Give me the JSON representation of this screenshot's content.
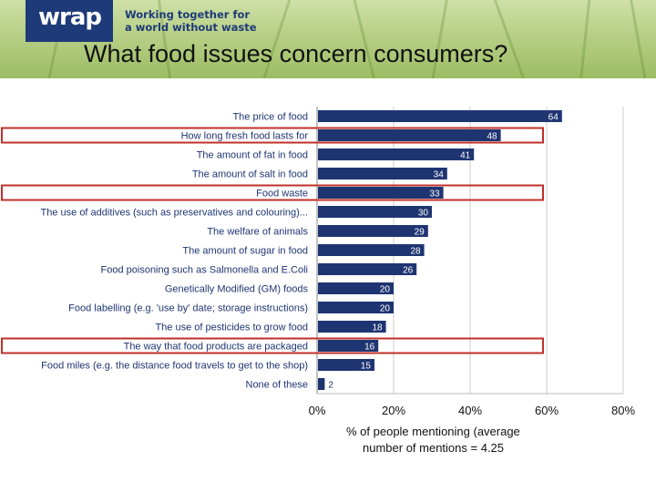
{
  "header": {
    "logo_text": "wrap",
    "tagline": [
      "Working together for",
      "a world without waste"
    ]
  },
  "slide_title": "What food issues concern consumers?",
  "caption_lines": [
    "% of people mentioning (average",
    "number of mentions = 4.25"
  ],
  "colors": {
    "bar": "#1f3572",
    "highlight": "#c0302a",
    "grid": "#cccccc",
    "accent": "#1e3a78"
  },
  "chart_data": {
    "type": "bar",
    "orientation": "horizontal",
    "title": "What food issues concern consumers?",
    "xlabel": "% of people mentioning (average number of mentions = 4.25",
    "ylabel": "",
    "xlim": [
      0,
      80
    ],
    "xticks": [
      "0%",
      "20%",
      "40%",
      "60%",
      "80%"
    ],
    "xtick_values": [
      0,
      20,
      40,
      60,
      80
    ],
    "grid": true,
    "categories": [
      "The price of food",
      "How long fresh food lasts for",
      "The amount of fat in food",
      "The amount of salt in food",
      "Food waste",
      "The use of additives (such as preservatives and colouring)...",
      "The welfare of animals",
      "The amount of sugar in food",
      "Food poisoning such as Salmonella and E.Coli",
      "Genetically Modified (GM) foods",
      "Food labelling (e.g. 'use by' date; storage instructions)",
      "The use of pesticides to grow food",
      "The way that food products are packaged",
      "Food miles (e.g. the distance food travels to get to the shop)",
      "None of these"
    ],
    "values": [
      64,
      48,
      41,
      34,
      33,
      30,
      29,
      28,
      26,
      20,
      20,
      18,
      16,
      15,
      2
    ],
    "highlighted": [
      "How long fresh food lasts for",
      "Food waste",
      "The way that food products are packaged"
    ]
  }
}
